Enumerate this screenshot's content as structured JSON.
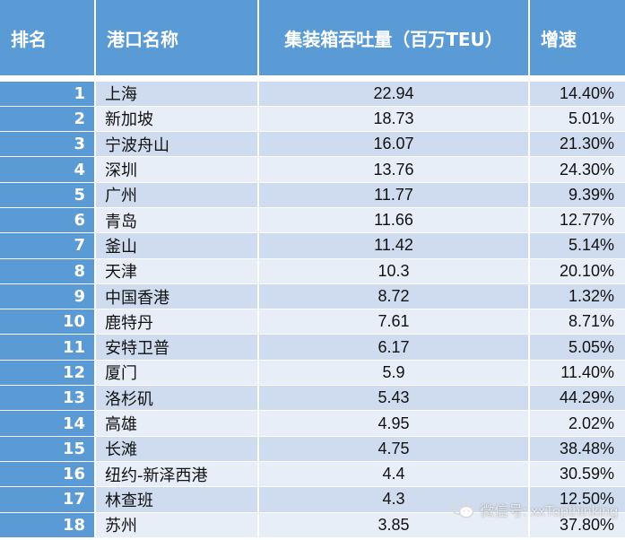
{
  "header": {
    "rank": "排名",
    "port": "港口名称",
    "throughput": "集装箱吞吐量（百万TEU）",
    "growth": "增速"
  },
  "rows": [
    {
      "rank": "1",
      "port": "上海",
      "throughput": "22.94",
      "growth": "14.40%"
    },
    {
      "rank": "2",
      "port": "新加坡",
      "throughput": "18.73",
      "growth": "5.01%"
    },
    {
      "rank": "3",
      "port": "宁波舟山",
      "throughput": "16.07",
      "growth": "21.30%"
    },
    {
      "rank": "4",
      "port": "深圳",
      "throughput": "13.76",
      "growth": "24.30%"
    },
    {
      "rank": "5",
      "port": "广州",
      "throughput": "11.77",
      "growth": "9.39%"
    },
    {
      "rank": "6",
      "port": "青岛",
      "throughput": "11.66",
      "growth": "12.77%"
    },
    {
      "rank": "7",
      "port": "釜山",
      "throughput": "11.42",
      "growth": "5.14%"
    },
    {
      "rank": "8",
      "port": "天津",
      "throughput": "10.3",
      "growth": "20.10%"
    },
    {
      "rank": "9",
      "port": "中国香港",
      "throughput": "8.72",
      "growth": "1.32%"
    },
    {
      "rank": "10",
      "port": "鹿特丹",
      "throughput": "7.61",
      "growth": "8.71%"
    },
    {
      "rank": "11",
      "port": "安特卫普",
      "throughput": "6.17",
      "growth": "5.05%"
    },
    {
      "rank": "12",
      "port": "厦门",
      "throughput": "5.9",
      "growth": "11.40%"
    },
    {
      "rank": "13",
      "port": "洛杉矶",
      "throughput": "5.43",
      "growth": "44.29%"
    },
    {
      "rank": "14",
      "port": "高雄",
      "throughput": "4.95",
      "growth": "2.02%"
    },
    {
      "rank": "15",
      "port": "长滩",
      "throughput": "4.75",
      "growth": "38.48%"
    },
    {
      "rank": "16",
      "port": "纽约-新泽西港",
      "throughput": "4.4",
      "growth": "30.59%"
    },
    {
      "rank": "17",
      "port": "林查班",
      "throughput": "4.3",
      "growth": "12.50%"
    },
    {
      "rank": "18",
      "port": "苏州",
      "throughput": "3.85",
      "growth": "37.80%"
    }
  ],
  "watermark": {
    "text": "微信号: xxTopthinking",
    "icon": "wechat-icon"
  },
  "colors": {
    "header_bg": "#5b9bd5",
    "row_dark": "#cfdcef",
    "row_light": "#e8eef8"
  }
}
